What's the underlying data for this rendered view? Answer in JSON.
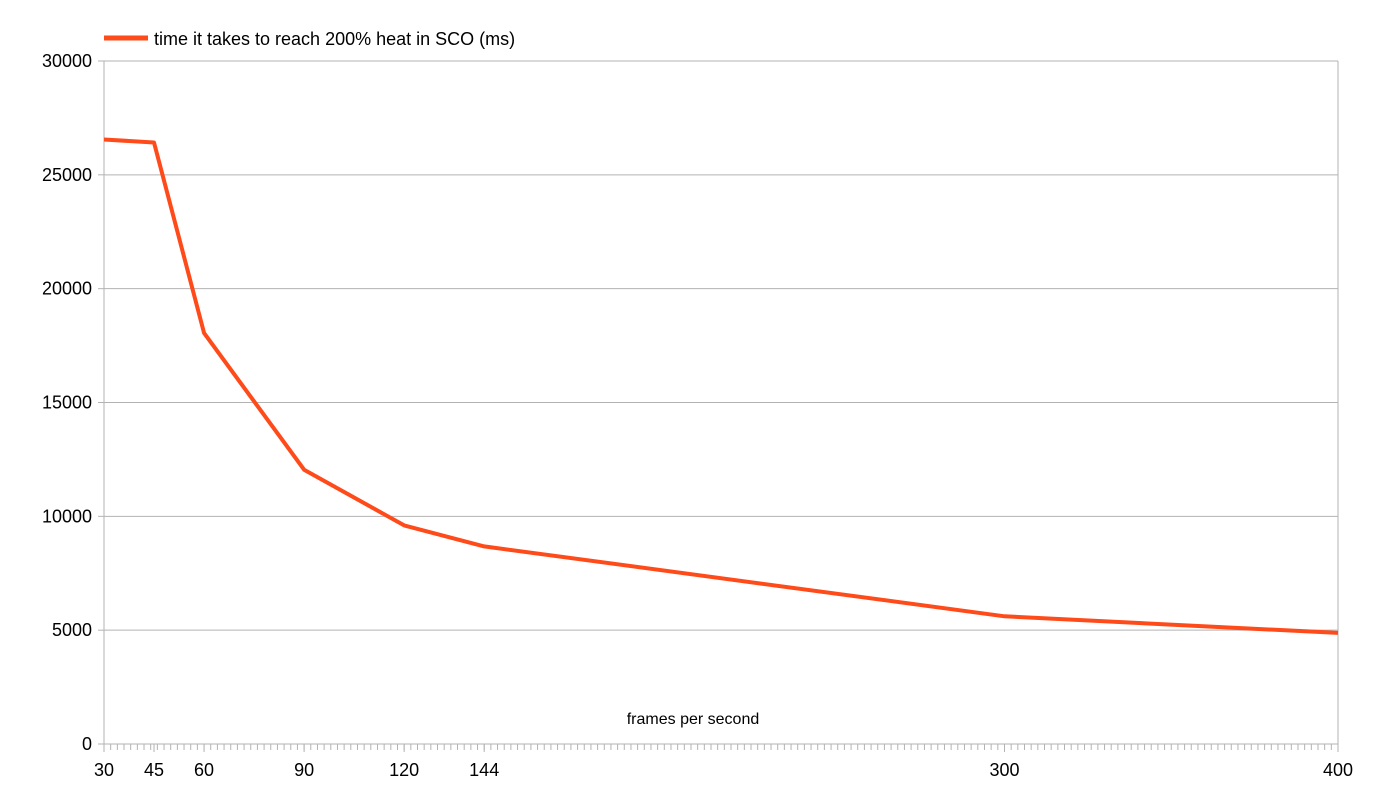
{
  "colors": {
    "series": "#ff4a1a",
    "grid": "#b3b3b3",
    "axis": "#b3b3b3",
    "background": "#ffffff"
  },
  "chart_data": {
    "type": "line",
    "title": "",
    "xlabel": "frames per second",
    "ylabel": "",
    "x": [
      30,
      45,
      60,
      90,
      120,
      144,
      300,
      400
    ],
    "xlim": [
      30,
      400
    ],
    "x_tick_labels": [
      "30",
      "45",
      "60",
      "90",
      "120",
      "144",
      "300",
      "400"
    ],
    "ylim": [
      0,
      30000
    ],
    "y_ticks": [
      0,
      5000,
      10000,
      15000,
      20000,
      25000,
      30000
    ],
    "y_tick_labels": [
      "0",
      "5000",
      "10000",
      "15000",
      "20000",
      "25000",
      "30000"
    ],
    "grid": "horizontal",
    "legend_position": "top-left",
    "series": [
      {
        "name": "time it takes to reach 200% heat in SCO (ms)",
        "color": "#ff4a1a",
        "values": [
          26550,
          26420,
          18050,
          12050,
          9600,
          8680,
          5610,
          4880
        ]
      }
    ]
  }
}
